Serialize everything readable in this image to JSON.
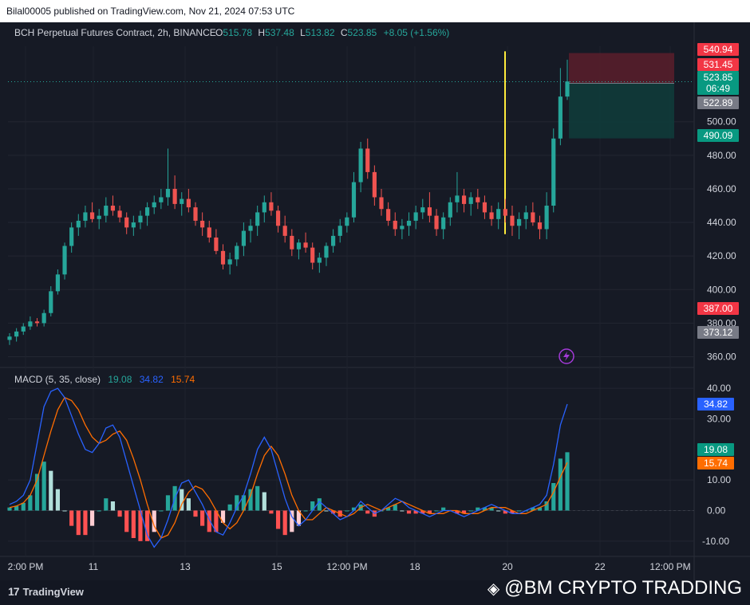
{
  "header": {
    "publisher": "Bilal00005 published on TradingView.com, Nov 21, 2024 07:53 UTC"
  },
  "legend": {
    "symbol": "BCH Perpetual Futures Contract, 2h, BINANCE",
    "o_label": "O",
    "o_value": "515.78",
    "h_label": "H",
    "h_value": "537.48",
    "l_label": "L",
    "l_value": "513.82",
    "c_label": "C",
    "c_value": "523.85",
    "change": "+8.05 (+1.56%)"
  },
  "macd_legend": {
    "label": "MACD (5, 35, close)",
    "hist": "19.08",
    "macd": "34.82",
    "signal": "15.74"
  },
  "price_axis_ticks": [
    "500.00",
    "480.00",
    "460.00",
    "440.00",
    "420.00",
    "400.00",
    "380.00",
    "360.00"
  ],
  "price_tags": [
    {
      "text": "540.94",
      "bg": "#f23645",
      "fg": "#ffffff"
    },
    {
      "text": "531.45",
      "bg": "#f23645",
      "fg": "#ffffff"
    },
    {
      "text": "523.85",
      "bg": "#089981",
      "fg": "#ffffff",
      "sub": "06:49"
    },
    {
      "text": "522.89",
      "bg": "#787b86",
      "fg": "#ffffff"
    },
    {
      "text": "490.09",
      "bg": "#089981",
      "fg": "#ffffff"
    },
    {
      "text": "387.00",
      "bg": "#f23645",
      "fg": "#ffffff"
    },
    {
      "text": "373.12",
      "bg": "#787b86",
      "fg": "#ffffff"
    }
  ],
  "macd_axis_ticks": [
    "40.00",
    "30.00",
    "10.00",
    "0.00",
    "-10.00"
  ],
  "macd_tags": [
    {
      "text": "34.82",
      "bg": "#2962ff",
      "fg": "#ffffff"
    },
    {
      "text": "19.08",
      "bg": "#089981",
      "fg": "#ffffff"
    },
    {
      "text": "15.74",
      "bg": "#ff6d00",
      "fg": "#ffffff"
    }
  ],
  "time_axis": [
    "2:00 PM",
    "11",
    "13",
    "15",
    "12:00 PM",
    "18",
    "20",
    "22",
    "12:00 PM"
  ],
  "footer": {
    "brand": "TradingView",
    "watermark": "@BM CRYPTO TRADDING"
  },
  "colors": {
    "up": "#26a69a",
    "down": "#ef5350",
    "macd": "#2962ff",
    "signal": "#ff6d00",
    "marker": "#ffeb3b",
    "stop_zone": "#f23645",
    "target_zone": "#089981"
  },
  "chart_data": [
    {
      "type": "candlestick",
      "title": "BCH Perpetual Futures Contract, 2h, BINANCE",
      "ylim": [
        355,
        545
      ],
      "grid": true,
      "y_ticks": [
        360,
        380,
        400,
        420,
        440,
        460,
        480,
        500
      ],
      "ohlc": [
        [
          370,
          374,
          367,
          372
        ],
        [
          372,
          377,
          369,
          375
        ],
        [
          375,
          380,
          373,
          378
        ],
        [
          378,
          384,
          376,
          381
        ],
        [
          381,
          383,
          378,
          380
        ],
        [
          380,
          388,
          378,
          386
        ],
        [
          386,
          402,
          384,
          399
        ],
        [
          399,
          412,
          397,
          409
        ],
        [
          409,
          428,
          406,
          426
        ],
        [
          426,
          440,
          422,
          437
        ],
        [
          437,
          445,
          432,
          441
        ],
        [
          441,
          450,
          437,
          446
        ],
        [
          446,
          452,
          440,
          442
        ],
        [
          442,
          448,
          436,
          444
        ],
        [
          444,
          455,
          440,
          450
        ],
        [
          450,
          456,
          444,
          447
        ],
        [
          447,
          450,
          440,
          443
        ],
        [
          443,
          446,
          433,
          437
        ],
        [
          437,
          444,
          432,
          440
        ],
        [
          440,
          447,
          436,
          444
        ],
        [
          444,
          452,
          438,
          449
        ],
        [
          449,
          456,
          445,
          452
        ],
        [
          452,
          460,
          448,
          455
        ],
        [
          455,
          484,
          450,
          460
        ],
        [
          460,
          468,
          448,
          451
        ],
        [
          451,
          458,
          444,
          454
        ],
        [
          454,
          460,
          446,
          449
        ],
        [
          449,
          452,
          438,
          441
        ],
        [
          441,
          446,
          432,
          437
        ],
        [
          437,
          441,
          428,
          431
        ],
        [
          431,
          436,
          421,
          423
        ],
        [
          423,
          427,
          412,
          415
        ],
        [
          415,
          422,
          409,
          418
        ],
        [
          418,
          428,
          414,
          426
        ],
        [
          426,
          440,
          420,
          435
        ],
        [
          435,
          442,
          428,
          438
        ],
        [
          438,
          450,
          432,
          446
        ],
        [
          446,
          456,
          440,
          452
        ],
        [
          452,
          458,
          444,
          447
        ],
        [
          447,
          450,
          434,
          438
        ],
        [
          438,
          444,
          428,
          432
        ],
        [
          432,
          436,
          420,
          424
        ],
        [
          424,
          430,
          418,
          428
        ],
        [
          428,
          434,
          422,
          425
        ],
        [
          425,
          428,
          412,
          416
        ],
        [
          416,
          422,
          410,
          419
        ],
        [
          419,
          428,
          414,
          426
        ],
        [
          426,
          436,
          422,
          432
        ],
        [
          432,
          442,
          428,
          438
        ],
        [
          438,
          446,
          434,
          443
        ],
        [
          443,
          470,
          440,
          464
        ],
        [
          464,
          488,
          458,
          484
        ],
        [
          484,
          490,
          466,
          470
        ],
        [
          470,
          474,
          450,
          455
        ],
        [
          455,
          460,
          444,
          448
        ],
        [
          448,
          452,
          438,
          441
        ],
        [
          441,
          446,
          432,
          436
        ],
        [
          436,
          442,
          430,
          438
        ],
        [
          438,
          446,
          432,
          441
        ],
        [
          441,
          450,
          436,
          446
        ],
        [
          446,
          454,
          442,
          449
        ],
        [
          449,
          458,
          440,
          444
        ],
        [
          444,
          448,
          432,
          436
        ],
        [
          436,
          446,
          430,
          443
        ],
        [
          443,
          455,
          438,
          452
        ],
        [
          452,
          470,
          446,
          456
        ],
        [
          456,
          460,
          446,
          451
        ],
        [
          451,
          458,
          444,
          455
        ],
        [
          455,
          460,
          448,
          452
        ],
        [
          452,
          456,
          442,
          446
        ],
        [
          446,
          450,
          438,
          442
        ],
        [
          442,
          452,
          436,
          448
        ],
        [
          448,
          454,
          440,
          444
        ],
        [
          444,
          450,
          432,
          438
        ],
        [
          438,
          446,
          430,
          442
        ],
        [
          442,
          450,
          436,
          446
        ],
        [
          446,
          452,
          438,
          440
        ],
        [
          440,
          444,
          430,
          436
        ],
        [
          436,
          458,
          430,
          450
        ],
        [
          450,
          496,
          446,
          490
        ],
        [
          490,
          532,
          486,
          515
        ],
        [
          515,
          537,
          513,
          524
        ]
      ]
    },
    {
      "type": "line",
      "title": "MACD (5, 35, close)",
      "ylim": [
        -15,
        45
      ],
      "y_ticks": [
        -10,
        0,
        10,
        30,
        40
      ],
      "series": [
        {
          "name": "MACD",
          "values": [
            2,
            3,
            5,
            10,
            22,
            34,
            39,
            40,
            37,
            31,
            25,
            20,
            19,
            22,
            27,
            28,
            24,
            16,
            8,
            0,
            -8,
            -12,
            -9,
            -3,
            4,
            9,
            10,
            6,
            2,
            -3,
            -7,
            -8,
            -4,
            1,
            5,
            12,
            20,
            24,
            20,
            12,
            4,
            -2,
            -5,
            -3,
            0,
            3,
            1,
            -1,
            -3,
            -2,
            0,
            3,
            1,
            -1,
            0,
            2,
            4,
            3,
            1,
            0,
            -1,
            -2,
            -1,
            0,
            0,
            -1,
            -2,
            -1,
            0,
            1,
            2,
            1,
            0,
            -1,
            -1,
            0,
            1,
            2,
            5,
            15,
            28,
            34.82
          ]
        },
        {
          "name": "Signal",
          "values": [
            1,
            1.5,
            2.5,
            5,
            10,
            18,
            26,
            33,
            37,
            36,
            33,
            28,
            24,
            22,
            23,
            25,
            26,
            23,
            17,
            10,
            2,
            -5,
            -9,
            -8,
            -4,
            2,
            6,
            8,
            7,
            4,
            0,
            -4,
            -6,
            -4,
            0,
            5,
            12,
            18,
            21,
            18,
            12,
            5,
            0,
            -3,
            -3,
            -1,
            1,
            0,
            -1,
            -2,
            -1,
            1,
            2,
            1,
            0,
            1,
            2,
            3,
            2,
            1,
            0,
            -1,
            -1,
            -1,
            0,
            0,
            -1,
            -1,
            -1,
            0,
            1,
            1,
            1,
            0,
            -1,
            -1,
            0,
            1,
            2,
            6,
            11,
            15.74
          ]
        }
      ],
      "histogram": [
        1,
        1.5,
        2.5,
        5,
        12,
        16,
        13,
        7,
        0,
        -5,
        -8,
        -8,
        -5,
        0,
        4,
        3,
        -2,
        -7,
        -9,
        -10,
        -10,
        -7,
        0,
        5,
        8,
        7,
        4,
        -2,
        -5,
        -7,
        -7,
        -4,
        2,
        5,
        5,
        7,
        8,
        6,
        -1,
        -6,
        -8,
        -7,
        -5,
        0,
        3,
        4,
        0,
        -1,
        -2,
        0,
        1,
        2,
        -1,
        -2,
        0,
        1,
        2,
        0,
        -1,
        -1,
        -1,
        -1,
        0,
        1,
        0,
        -1,
        -1,
        0,
        1,
        1,
        1,
        0,
        -1,
        -1,
        0,
        0,
        1,
        1,
        3,
        9,
        17,
        19.08
      ]
    }
  ]
}
